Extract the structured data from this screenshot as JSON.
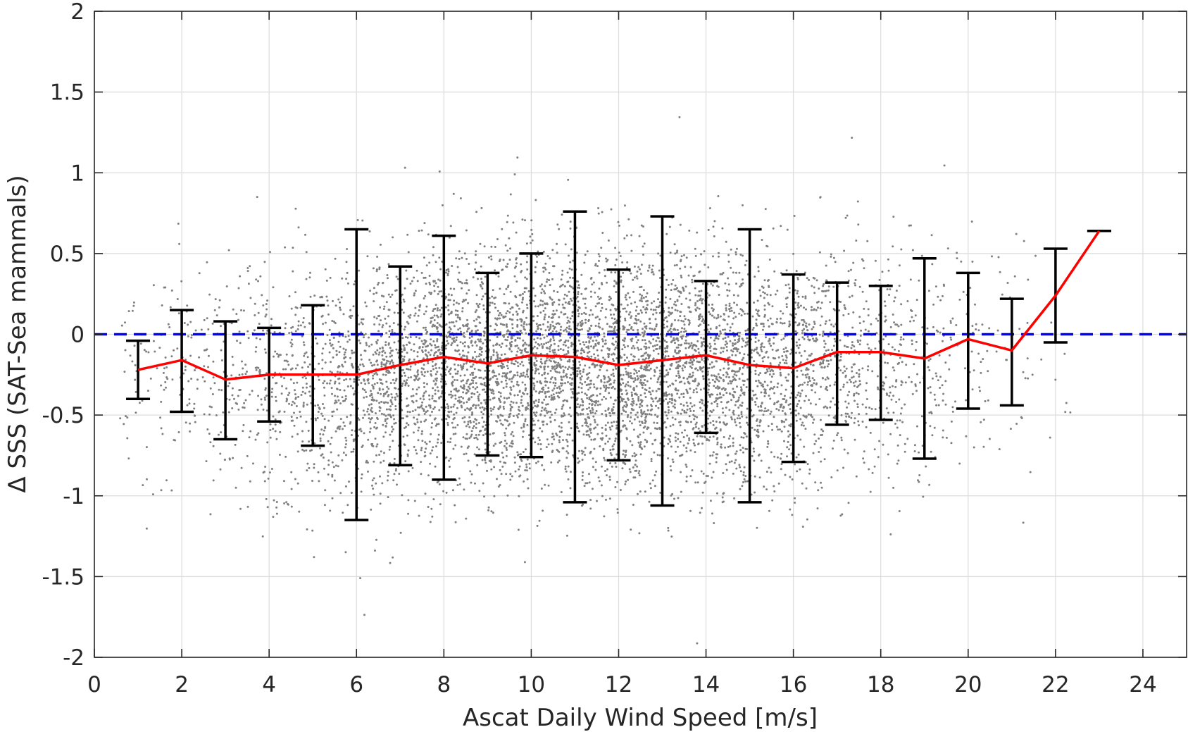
{
  "chart_data": {
    "type": "scatter",
    "title": "",
    "xlabel": "Ascat Daily Wind Speed [m/s]",
    "ylabel": "Δ SSS (SAT-Sea mammals)",
    "xlim": [
      0,
      25
    ],
    "ylim": [
      -2,
      2
    ],
    "grid": true,
    "legend": "none",
    "x_ticks": [
      0,
      2,
      4,
      6,
      8,
      10,
      12,
      14,
      16,
      18,
      20,
      22,
      24
    ],
    "x_tick_labels": [
      "0",
      "2",
      "4",
      "6",
      "8",
      "10",
      "12",
      "14",
      "16",
      "18",
      "20",
      "22",
      "24"
    ],
    "y_ticks": [
      -2,
      -1.5,
      -1,
      -0.5,
      0,
      0.5,
      1,
      1.5,
      2
    ],
    "y_tick_labels": [
      "-2",
      "-1.5",
      "-1",
      "-0.5",
      "0",
      "0.5",
      "1",
      "1.5",
      "2"
    ],
    "reference_line": {
      "y": 0,
      "style": "dashed",
      "color": "#0000ff"
    },
    "series": [
      {
        "type": "line-errorbar",
        "color": "#ff0000",
        "errorbar_color": "#000000",
        "x": [
          1,
          2,
          3,
          4,
          5,
          6,
          7,
          8,
          9,
          10,
          11,
          12,
          13,
          14,
          15,
          16,
          17,
          18,
          19,
          20,
          21,
          22,
          23
        ],
        "y": [
          -0.22,
          -0.16,
          -0.28,
          -0.25,
          -0.25,
          -0.25,
          -0.19,
          -0.14,
          -0.18,
          -0.13,
          -0.14,
          -0.19,
          -0.16,
          -0.13,
          -0.19,
          -0.21,
          -0.11,
          -0.11,
          -0.15,
          -0.03,
          -0.1,
          0.24,
          0.64
        ],
        "upper": [
          -0.04,
          0.15,
          0.08,
          0.04,
          0.18,
          0.65,
          0.42,
          0.61,
          0.38,
          0.5,
          0.76,
          0.4,
          0.73,
          0.33,
          0.65,
          0.37,
          0.32,
          0.3,
          0.47,
          0.38,
          0.22,
          0.53,
          0.64
        ],
        "lower": [
          -0.4,
          -0.48,
          -0.65,
          -0.54,
          -0.69,
          -1.15,
          -0.81,
          -0.9,
          -0.75,
          -0.76,
          -1.04,
          -0.78,
          -1.06,
          -0.61,
          -1.04,
          -0.79,
          -0.56,
          -0.53,
          -0.77,
          -0.46,
          -0.44,
          -0.05,
          0.64
        ]
      },
      {
        "type": "scatter",
        "color": "#808080",
        "description_points": "dense cloud of observations",
        "density_by_speed": [
          [
            0.6,
            3
          ],
          [
            1,
            40
          ],
          [
            2,
            80
          ],
          [
            3,
            110
          ],
          [
            4,
            160
          ],
          [
            5,
            240
          ],
          [
            6,
            330
          ],
          [
            7,
            430
          ],
          [
            8,
            520
          ],
          [
            9,
            560
          ],
          [
            10,
            600
          ],
          [
            11,
            600
          ],
          [
            12,
            580
          ],
          [
            13,
            560
          ],
          [
            14,
            520
          ],
          [
            15,
            440
          ],
          [
            16,
            360
          ],
          [
            17,
            260
          ],
          [
            18,
            180
          ],
          [
            19,
            110
          ],
          [
            20,
            60
          ],
          [
            21,
            30
          ],
          [
            22,
            10
          ]
        ]
      }
    ]
  }
}
